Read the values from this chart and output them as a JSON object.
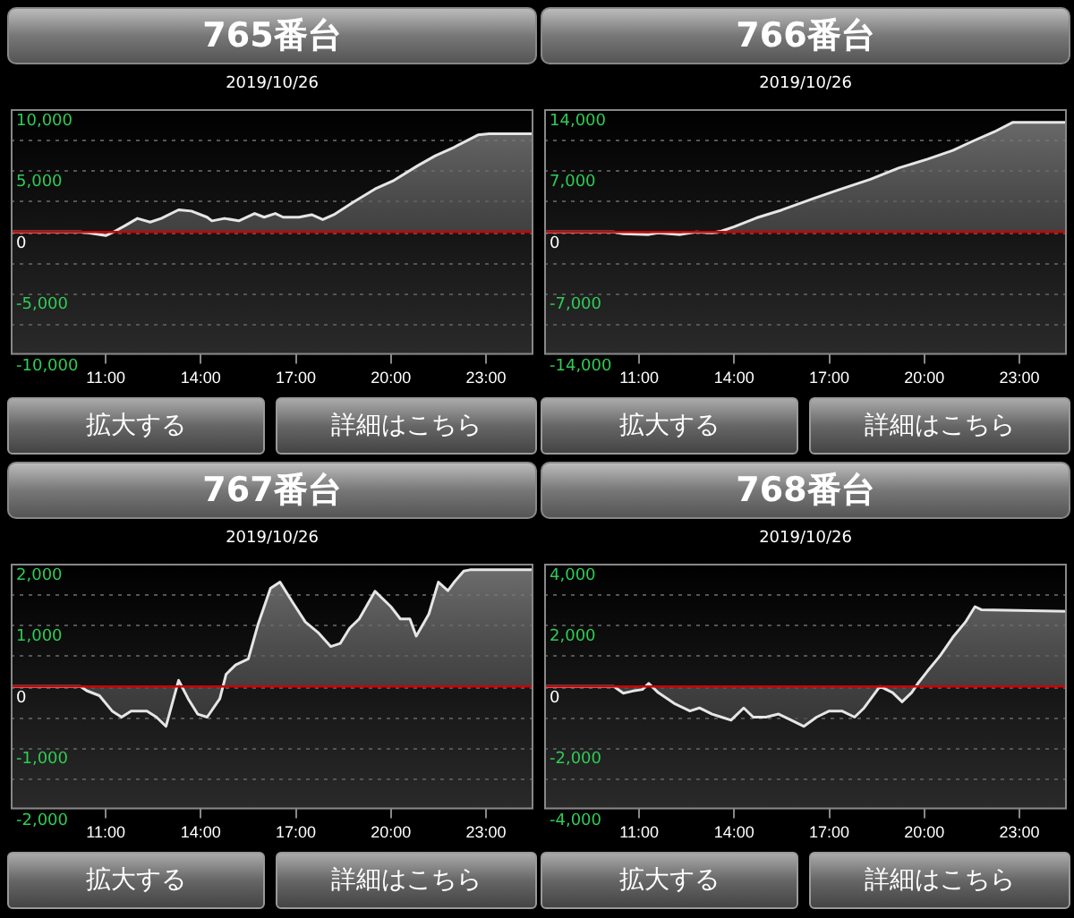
{
  "chart_data": [
    {
      "type": "area",
      "title": "765番台",
      "subtitle": "2019/10/26",
      "annotations": [
        "拡大する",
        "詳細はこちら"
      ],
      "x": [
        8,
        10.2,
        10.5,
        11,
        11.25,
        11.6,
        12,
        12.4,
        12.75,
        13.3,
        13.7,
        14.2,
        14.35,
        14.75,
        15.2,
        15.7,
        16,
        16.35,
        16.6,
        17.1,
        17.5,
        17.85,
        18.2,
        18.8,
        19.5,
        20.1,
        20.85,
        21.4,
        22,
        22.75,
        23.1,
        24.5
      ],
      "series": [
        {
          "color": "#e6e6e6",
          "values": [
            0,
            0,
            -100,
            -300,
            0,
            500,
            1100,
            800,
            1100,
            1800,
            1700,
            1200,
            900,
            1100,
            900,
            1500,
            1200,
            1500,
            1200,
            1200,
            1400,
            1000,
            1400,
            2400,
            3500,
            4200,
            5400,
            6200,
            6900,
            7900,
            8000,
            8000
          ]
        }
      ],
      "xlim": [
        8,
        24.5
      ],
      "xticks": [
        {
          "value": 11,
          "label": "11:00"
        },
        {
          "value": 14,
          "label": "14:00"
        },
        {
          "value": 17,
          "label": "17:00"
        },
        {
          "value": 20,
          "label": "20:00"
        },
        {
          "value": 23,
          "label": "23:00"
        }
      ],
      "ylim": [
        -10000,
        10000
      ],
      "yticks": [
        {
          "value": -10000,
          "label": "-10,000"
        },
        {
          "value": -7500,
          "label": null
        },
        {
          "value": -5000,
          "label": "-5,000"
        },
        {
          "value": -2500,
          "label": null
        },
        {
          "value": 0,
          "label": "0"
        },
        {
          "value": 2500,
          "label": null
        },
        {
          "value": 5000,
          "label": "5,000"
        },
        {
          "value": 7500,
          "label": null
        },
        {
          "value": 10000,
          "label": "10,000"
        }
      ],
      "grid": "y",
      "legend": false,
      "ref_lines": [
        {
          "axis": "y",
          "value": 0,
          "color": "#cc0000"
        }
      ]
    },
    {
      "type": "area",
      "title": "766番台",
      "subtitle": "2019/10/26",
      "annotations": [
        "拡大する",
        "詳細はこちら"
      ],
      "x": [
        8,
        10.2,
        10.5,
        11.3,
        11.6,
        12.3,
        12.8,
        13.3,
        13.6,
        14,
        14.7,
        15.5,
        16.5,
        17.3,
        18.3,
        19.2,
        20.1,
        20.9,
        21.5,
        22.2,
        22.8,
        24.5
      ],
      "series": [
        {
          "color": "#e6e6e6",
          "values": [
            0,
            0,
            -200,
            -300,
            -100,
            -300,
            0,
            -100,
            100,
            600,
            1600,
            2500,
            3800,
            4800,
            6000,
            7300,
            8300,
            9300,
            10300,
            11400,
            12500,
            12500
          ]
        }
      ],
      "xlim": [
        8,
        24.5
      ],
      "xticks": [
        {
          "value": 11,
          "label": "11:00"
        },
        {
          "value": 14,
          "label": "14:00"
        },
        {
          "value": 17,
          "label": "17:00"
        },
        {
          "value": 20,
          "label": "20:00"
        },
        {
          "value": 23,
          "label": "23:00"
        }
      ],
      "ylim": [
        -14000,
        14000
      ],
      "yticks": [
        {
          "value": -14000,
          "label": "-14,000"
        },
        {
          "value": -10500,
          "label": null
        },
        {
          "value": -7000,
          "label": "-7,000"
        },
        {
          "value": -3500,
          "label": null
        },
        {
          "value": 0,
          "label": "0"
        },
        {
          "value": 3500,
          "label": null
        },
        {
          "value": 7000,
          "label": "7,000"
        },
        {
          "value": 10500,
          "label": null
        },
        {
          "value": 14000,
          "label": "14,000"
        }
      ],
      "grid": "y",
      "legend": false,
      "ref_lines": [
        {
          "axis": "y",
          "value": 0,
          "color": "#cc0000"
        }
      ]
    },
    {
      "type": "area",
      "title": "767番台",
      "subtitle": "2019/10/26",
      "annotations": [
        "拡大する",
        "詳細はこちら"
      ],
      "x": [
        8,
        10.2,
        10.4,
        10.8,
        11.2,
        11.5,
        11.8,
        12.3,
        12.6,
        12.9,
        13.3,
        13.6,
        13.9,
        14.2,
        14.6,
        14.8,
        15.1,
        15.5,
        15.8,
        16.2,
        16.5,
        16.9,
        17.3,
        17.7,
        18.1,
        18.4,
        18.7,
        19,
        19.5,
        20,
        20.3,
        20.6,
        20.8,
        21.2,
        21.5,
        21.8,
        22,
        22.3,
        22.5,
        24.5
      ],
      "series": [
        {
          "color": "#e6e6e6",
          "values": [
            0,
            0,
            -70,
            -150,
            -400,
            -500,
            -400,
            -400,
            -500,
            -650,
            100,
            -200,
            -450,
            -500,
            -200,
            200,
            350,
            450,
            1000,
            1600,
            1700,
            1370,
            1050,
            880,
            650,
            700,
            950,
            1100,
            1550,
            1300,
            1100,
            1100,
            820,
            1180,
            1700,
            1560,
            1700,
            1880,
            1900,
            1900
          ]
        }
      ],
      "xlim": [
        8,
        24.5
      ],
      "xticks": [
        {
          "value": 11,
          "label": "11:00"
        },
        {
          "value": 14,
          "label": "14:00"
        },
        {
          "value": 17,
          "label": "17:00"
        },
        {
          "value": 20,
          "label": "20:00"
        },
        {
          "value": 23,
          "label": "23:00"
        }
      ],
      "ylim": [
        -2000,
        2000
      ],
      "yticks": [
        {
          "value": -2000,
          "label": "-2,000"
        },
        {
          "value": -1500,
          "label": null
        },
        {
          "value": -1000,
          "label": "-1,000"
        },
        {
          "value": -500,
          "label": null
        },
        {
          "value": 0,
          "label": "0"
        },
        {
          "value": 500,
          "label": null
        },
        {
          "value": 1000,
          "label": "1,000"
        },
        {
          "value": 1500,
          "label": null
        },
        {
          "value": 2000,
          "label": "2,000"
        }
      ],
      "grid": "y",
      "legend": false,
      "ref_lines": [
        {
          "axis": "y",
          "value": 0,
          "color": "#cc0000"
        }
      ]
    },
    {
      "type": "area",
      "title": "768番台",
      "subtitle": "2019/10/26",
      "annotations": [
        "拡大する",
        "詳細はこちら"
      ],
      "x": [
        8,
        10.2,
        10.5,
        10.8,
        11.1,
        11.3,
        11.6,
        12.1,
        12.6,
        12.9,
        13.3,
        13.6,
        13.9,
        14.3,
        14.6,
        15,
        15.4,
        15.8,
        16.2,
        16.6,
        17,
        17.4,
        17.8,
        18.1,
        18.6,
        19,
        19.3,
        19.6,
        19.8,
        20.1,
        20.5,
        20.9,
        21.3,
        21.6,
        21.8,
        24.5
      ],
      "series": [
        {
          "color": "#e6e6e6",
          "values": [
            0,
            0,
            -220,
            -150,
            -100,
            100,
            -200,
            -550,
            -800,
            -700,
            -900,
            -1000,
            -1100,
            -700,
            -1000,
            -1000,
            -900,
            -1100,
            -1300,
            -1000,
            -800,
            -800,
            -1000,
            -700,
            0,
            -200,
            -500,
            -200,
            100,
            500,
            1000,
            1600,
            2100,
            2600,
            2500,
            2450
          ]
        }
      ],
      "xlim": [
        8,
        24.5
      ],
      "xticks": [
        {
          "value": 11,
          "label": "11:00"
        },
        {
          "value": 14,
          "label": "14:00"
        },
        {
          "value": 17,
          "label": "17:00"
        },
        {
          "value": 20,
          "label": "20:00"
        },
        {
          "value": 23,
          "label": "23:00"
        }
      ],
      "ylim": [
        -4000,
        4000
      ],
      "yticks": [
        {
          "value": -4000,
          "label": "-4,000"
        },
        {
          "value": -3000,
          "label": null
        },
        {
          "value": -2000,
          "label": "-2,000"
        },
        {
          "value": -1000,
          "label": null
        },
        {
          "value": 0,
          "label": "0"
        },
        {
          "value": 1000,
          "label": null
        },
        {
          "value": 2000,
          "label": "2,000"
        },
        {
          "value": 3000,
          "label": null
        },
        {
          "value": 4000,
          "label": "4,000"
        }
      ],
      "grid": "y",
      "legend": false,
      "ref_lines": [
        {
          "axis": "y",
          "value": 0,
          "color": "#cc0000"
        }
      ]
    }
  ]
}
